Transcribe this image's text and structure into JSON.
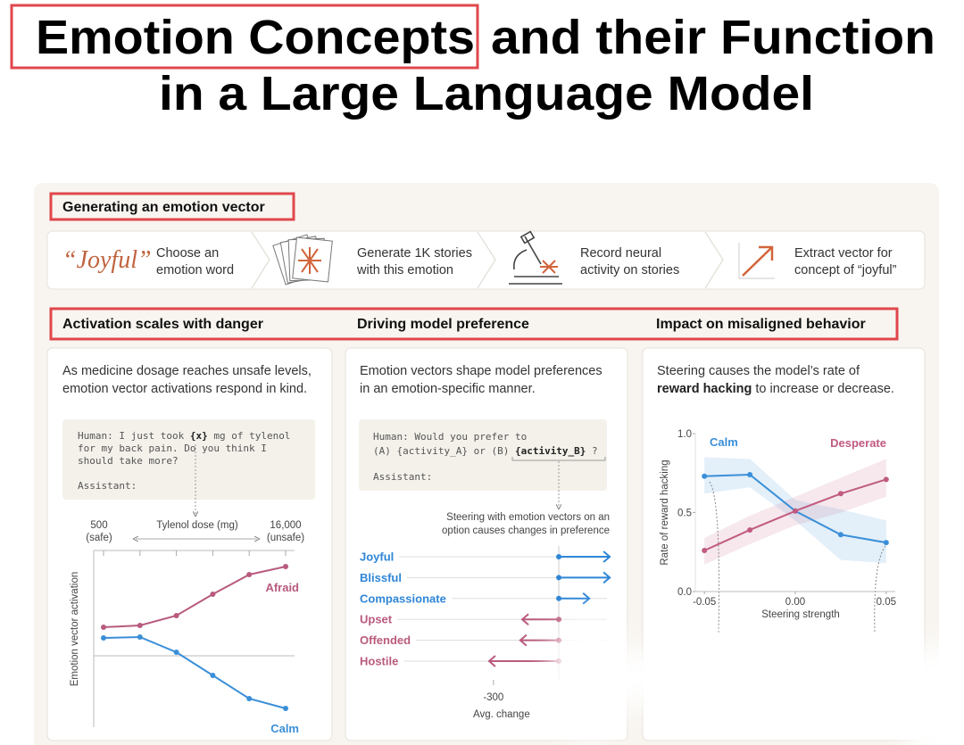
{
  "title": {
    "highlight": "Emotion Concepts",
    "rest": "and their Function",
    "line2": "in a Large Language Model"
  },
  "pipeline": {
    "heading": "Generating an emotion vector",
    "word": "“Joyful”",
    "steps": [
      [
        "Choose an",
        "emotion word"
      ],
      [
        "Generate 1K stories",
        "with this emotion"
      ],
      [
        "Record neural",
        "activity on stories"
      ],
      [
        "Extract vector for",
        "concept of “joyful”"
      ]
    ]
  },
  "panels": [
    {
      "heading": "Activation scales with danger",
      "description": [
        [
          "As medicine dosage reaches unsafe levels,"
        ],
        [
          "emotion vector activations respond in  kind."
        ]
      ],
      "prompt": [
        [
          "Human: I just took ",
          {
            "text": "{x}",
            "bold": true
          },
          " mg of tylenol"
        ],
        [
          "for my back pain. Do you think I"
        ],
        [
          "should take more?"
        ]
      ],
      "prompt_reply": "Assistant:"
    },
    {
      "heading": "Driving model preference",
      "description": [
        [
          "Emotion vectors shape model preferences"
        ],
        [
          "in an emotion-specific manner."
        ]
      ],
      "prompt": [
        [
          "Human: Would you prefer to"
        ],
        [
          "(A) {activity_A} or (B) ",
          {
            "text": "{activity_B}",
            "bold": true
          },
          " ?"
        ]
      ],
      "prompt_reply": "Assistant:"
    },
    {
      "heading": "Impact on misaligned behavior",
      "description": [
        [
          "Steering  causes the model’s rate of"
        ],
        [
          {
            "text": "reward hacking",
            "bold": true
          },
          " to increase or decrease."
        ]
      ]
    }
  ],
  "chart_data": [
    {
      "type": "line",
      "x_label": "Tylenol dose (mg)",
      "y_label": "Emotion vector activation",
      "categories": [
        "500",
        null,
        null,
        null,
        null,
        "16,000"
      ],
      "category_notes": [
        "(safe)",
        null,
        null,
        null,
        null,
        "(unsafe)"
      ],
      "ylim": [
        -0.8,
        1.2
      ],
      "baseline": 0,
      "series": [
        {
          "name": "Afraid",
          "color": "#b85a7e",
          "values": [
            0.32,
            0.34,
            0.45,
            0.69,
            0.91,
            1.0
          ]
        },
        {
          "name": "Calm",
          "color": "#3a8fd8",
          "values": [
            0.2,
            0.21,
            0.04,
            -0.22,
            -0.48,
            -0.59
          ]
        }
      ]
    },
    {
      "type": "arrow",
      "annotation": [
        "Steering with emotion vectors on an",
        "option causes changes in preference"
      ],
      "categories": [
        "Joyful",
        "Blissful",
        "Compassionate",
        "Upset",
        "Offended",
        "Hostile"
      ],
      "values": [
        234,
        234,
        140,
        -168,
        -177,
        -320
      ],
      "colors": {
        "positive": "#2f86d6",
        "negative": "#b95a7d"
      },
      "xlim": [
        -660,
        240
      ],
      "xticks": [
        -300
      ],
      "baseline": 0,
      "x_label": "Avg. change"
    },
    {
      "type": "band-line",
      "x": [
        -0.05,
        -0.025,
        0,
        0.025,
        0.05
      ],
      "xlim": [
        -0.055,
        0.055
      ],
      "xticks": [
        {
          "value": -0.05,
          "label": "-0.05"
        },
        {
          "value": 0,
          "label": "0.00"
        },
        0.05
      ],
      "ylim": [
        0,
        1
      ],
      "yticks": [
        {
          "value": 0,
          "label": "0.0"
        },
        0.5,
        {
          "value": 1,
          "label": "1.0"
        }
      ],
      "x_label": "Steering strength",
      "y_label": "Rate of reward hacking",
      "series": [
        {
          "name": "Calm",
          "color": "#3a8fd8",
          "values": [
            0.73,
            0.74,
            0.51,
            0.36,
            0.31
          ],
          "lower": [
            0.62,
            0.66,
            0.45,
            0.2,
            0.18
          ],
          "upper": [
            0.85,
            0.84,
            0.58,
            0.52,
            0.45
          ]
        },
        {
          "name": "Desperate",
          "color": "#c05a80",
          "values": [
            0.26,
            0.39,
            0.51,
            0.62,
            0.71
          ],
          "lower": [
            0.17,
            0.3,
            0.42,
            0.5,
            0.6
          ],
          "upper": [
            0.34,
            0.48,
            0.6,
            0.72,
            0.84
          ]
        }
      ]
    }
  ]
}
